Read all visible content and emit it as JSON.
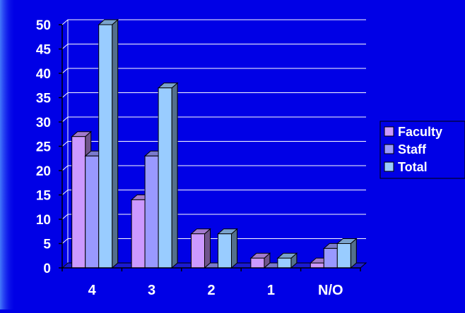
{
  "chart_data": {
    "type": "bar",
    "title": "",
    "xlabel": "",
    "ylabel": "",
    "categories": [
      "4",
      "3",
      "2",
      "1",
      "N/O"
    ],
    "series": [
      {
        "name": "Faculty",
        "values": [
          27,
          14,
          7,
          2,
          1
        ],
        "color": "#cc99ff"
      },
      {
        "name": "Staff",
        "values": [
          23,
          23,
          0,
          0,
          4
        ],
        "color": "#9999ff"
      },
      {
        "name": "Total",
        "values": [
          50,
          37,
          7,
          2,
          5
        ],
        "color": "#99ccff"
      }
    ],
    "ylim": [
      0,
      50
    ],
    "yticks": [
      0,
      5,
      10,
      15,
      20,
      25,
      30,
      35,
      40,
      45,
      50
    ],
    "grid": true,
    "legend": "right",
    "background_color": "#0000e6",
    "text_color": "#ffffff",
    "gridline_color": "#ffffff"
  }
}
